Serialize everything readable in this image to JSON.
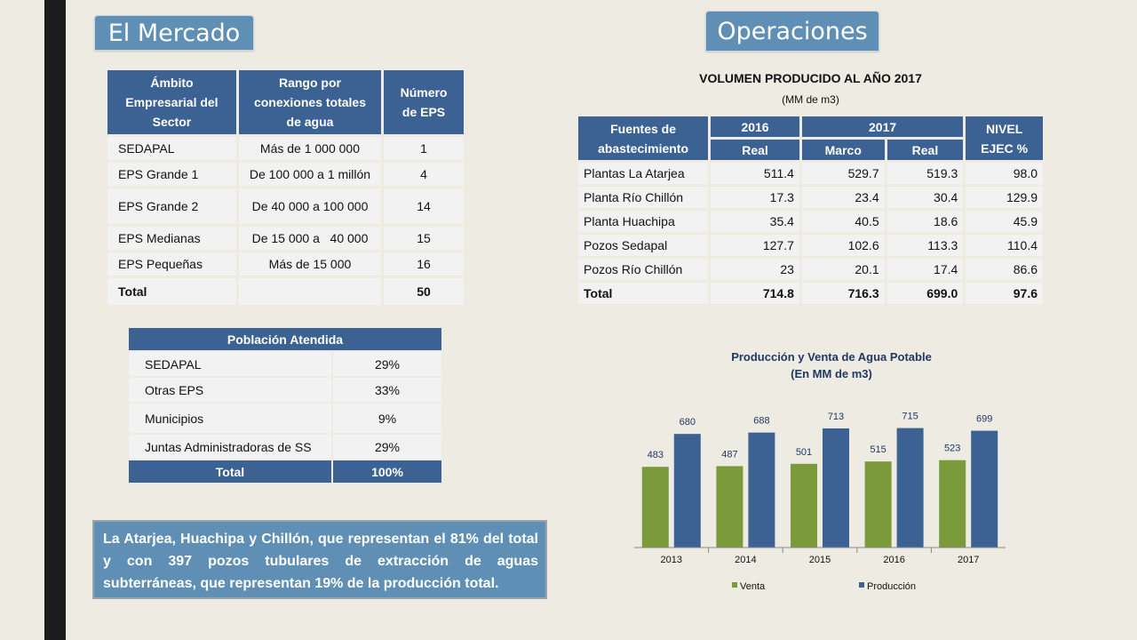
{
  "tabs": {
    "mercado": "El Mercado",
    "operaciones": "Operaciones"
  },
  "mercado_table": {
    "headers": [
      "Ámbito Empresarial del Sector",
      "Rango por conexiones totales de agua",
      "Número de EPS"
    ],
    "rows": [
      [
        "SEDAPAL",
        "Más de 1 000 000",
        "1"
      ],
      [
        "EPS Grande 1",
        "De 100 000 a 1 millón",
        "4"
      ],
      [
        "EPS Grande 2",
        "De 40 000 a 100 000",
        "14"
      ],
      [
        "EPS Medianas",
        "De 15 000 a   40 000",
        "15"
      ],
      [
        "EPS Pequeñas",
        "Más de 15 000",
        "16"
      ]
    ],
    "total": {
      "label": "Total",
      "value": "50"
    }
  },
  "poblacion_table": {
    "header": "Población Atendida",
    "rows": [
      [
        "SEDAPAL",
        "29%"
      ],
      [
        "Otras EPS",
        "33%"
      ],
      [
        "Municipios",
        "9%"
      ],
      [
        "Juntas Administradoras de SS",
        "29%"
      ]
    ],
    "total": {
      "label": "Total",
      "value": "100%"
    }
  },
  "note": "La Atarjea, Huachipa y Chillón, que representan el 81% del total y con 397 pozos tubulares de extracción de aguas subterráneas, que representan 19% de la producción total.",
  "volumen": {
    "title": "VOLUMEN PRODUCIDO AL AÑO 2017",
    "subtitle": "(MM de m3)",
    "headers": {
      "fuentes": "Fuentes de abastecimiento",
      "y2016": "2016",
      "y2017": "2017",
      "nivel": "NIVEL EJEC %",
      "real": "Real",
      "marco": "Marco"
    },
    "rows": [
      [
        "Plantas La Atarjea",
        "511.4",
        "529.7",
        "519.3",
        "98.0"
      ],
      [
        "Planta Río Chillón",
        "17.3",
        "23.4",
        "30.4",
        "129.9"
      ],
      [
        "Planta Huachipa",
        "35.4",
        "40.5",
        "18.6",
        "45.9"
      ],
      [
        "Pozos Sedapal",
        "127.7",
        "102.6",
        "113.3",
        "110.4"
      ],
      [
        "Pozos Río Chillón",
        "23",
        "20.1",
        "17.4",
        "86.6"
      ]
    ],
    "total": [
      "Total",
      "714.8",
      "716.3",
      "699.0",
      "97.6"
    ]
  },
  "chart_data": {
    "type": "bar",
    "title": "Producción y Venta de Agua Potable",
    "subtitle": "(En MM de m3)",
    "categories": [
      "2013",
      "2014",
      "2015",
      "2016",
      "2017"
    ],
    "series": [
      {
        "name": "Venta",
        "values": [
          483,
          487,
          501,
          515,
          523
        ],
        "color": "#7a9a3c"
      },
      {
        "name": "Producción",
        "values": [
          680,
          688,
          713,
          715,
          699
        ],
        "color": "#3c6294"
      }
    ],
    "ylim": [
      0,
      800
    ],
    "legend": "bottom",
    "grid": false
  },
  "colors": {
    "accent": "#5f8fb5",
    "header": "#3c6294",
    "cell": "#f2f2f2",
    "background": "#eeebe3"
  }
}
